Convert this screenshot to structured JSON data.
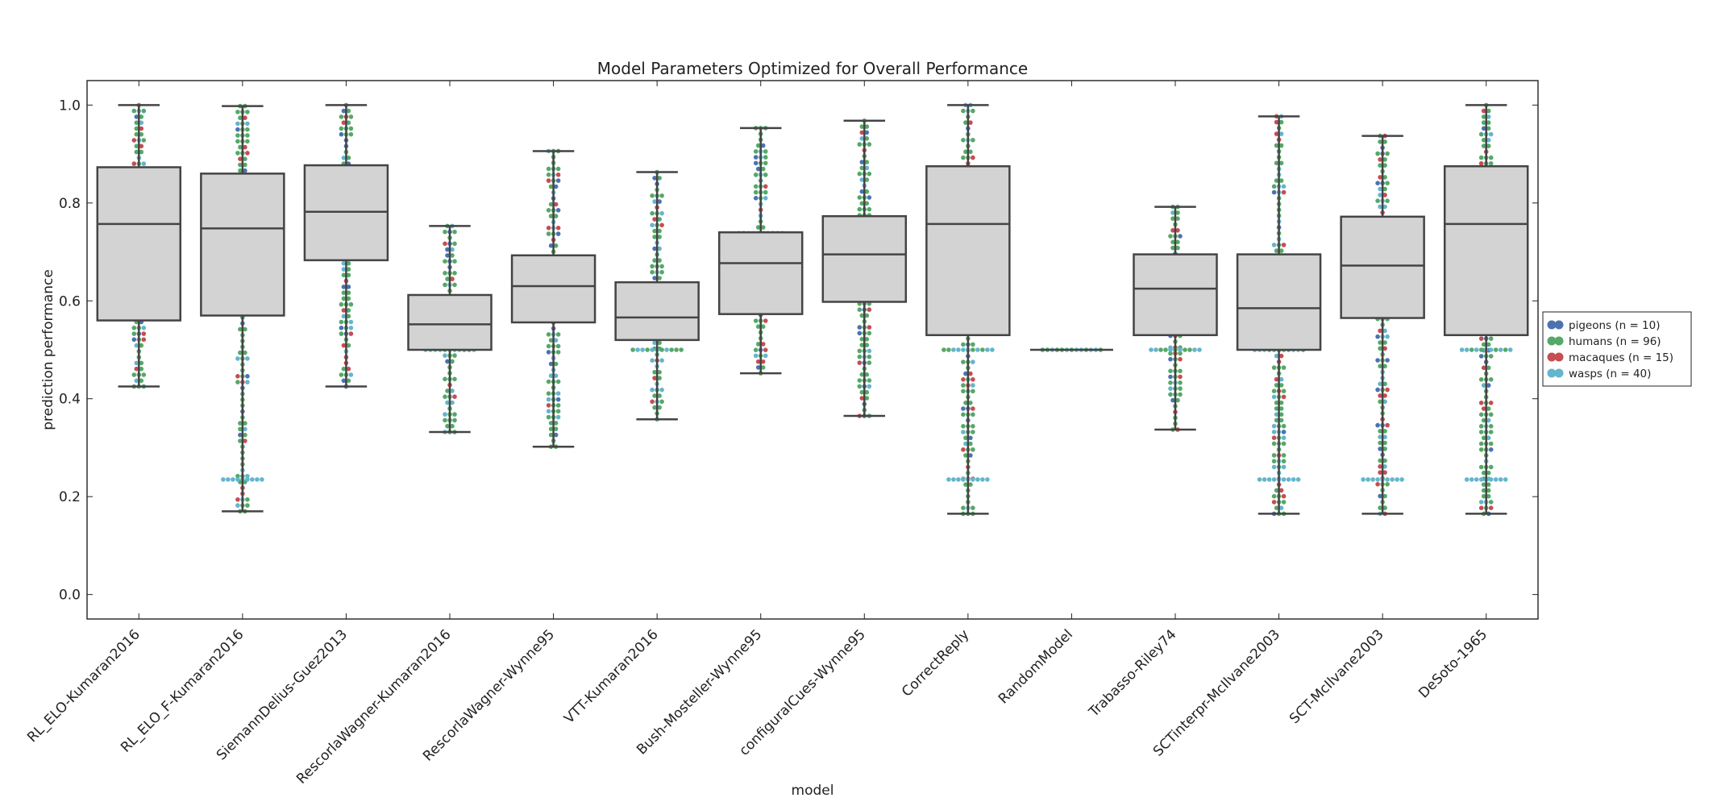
{
  "chart_data": {
    "type": "box",
    "title": "Model Parameters Optimized for Overall Performance",
    "xlabel": "model",
    "ylabel": "prediction performance",
    "ylim": [
      -0.05,
      1.05
    ],
    "yticks": [
      "0.0",
      "0.2",
      "0.4",
      "0.6",
      "0.8",
      "1.0"
    ],
    "grid": false,
    "legend_position": "right",
    "box_fill": "#d3d3d3",
    "box_edge": "#444444",
    "legend": [
      {
        "label": "pigeons (n = 10)",
        "color": "#4c72b0",
        "count": 10
      },
      {
        "label": "humans (n = 96)",
        "color": "#55a868",
        "count": 96
      },
      {
        "label": "macaques (n = 15)",
        "color": "#c44e52",
        "count": 15
      },
      {
        "label": "wasps (n = 40)",
        "color": "#64b5cd",
        "count": 40
      }
    ],
    "categories": [
      "RL_ELO-Kumaran2016",
      "RL_ELO_F-Kumaran2016",
      "SiemannDelius-Guez2013",
      "RescorlaWagner-Kumaran2016",
      "RescorlaWagner-Wynne95",
      "VTT-Kumaran2016",
      "Bush-Mosteller-Wynne95",
      "configuralCues-Wynne95",
      "CorrectReply",
      "RandomModel",
      "Trabasso-Riley74",
      "SCTinterpr-McIlvane2003",
      "SCT-McIlvane2003",
      "DeSoto-1965"
    ],
    "boxes": [
      {
        "whisker_low": 0.425,
        "q1": 0.56,
        "median": 0.757,
        "q3": 0.873,
        "whisker_high": 1.0
      },
      {
        "whisker_low": 0.17,
        "q1": 0.57,
        "median": 0.748,
        "q3": 0.86,
        "whisker_high": 0.998
      },
      {
        "whisker_low": 0.425,
        "q1": 0.683,
        "median": 0.782,
        "q3": 0.877,
        "whisker_high": 1.0
      },
      {
        "whisker_low": 0.332,
        "q1": 0.5,
        "median": 0.552,
        "q3": 0.612,
        "whisker_high": 0.753
      },
      {
        "whisker_low": 0.302,
        "q1": 0.556,
        "median": 0.63,
        "q3": 0.693,
        "whisker_high": 0.906
      },
      {
        "whisker_low": 0.358,
        "q1": 0.52,
        "median": 0.566,
        "q3": 0.638,
        "whisker_high": 0.863
      },
      {
        "whisker_low": 0.452,
        "q1": 0.573,
        "median": 0.677,
        "q3": 0.74,
        "whisker_high": 0.953
      },
      {
        "whisker_low": 0.365,
        "q1": 0.598,
        "median": 0.695,
        "q3": 0.773,
        "whisker_high": 0.968
      },
      {
        "whisker_low": 0.165,
        "q1": 0.53,
        "median": 0.757,
        "q3": 0.875,
        "whisker_high": 1.0
      },
      {
        "whisker_low": 0.5,
        "q1": 0.5,
        "median": 0.5,
        "q3": 0.5,
        "whisker_high": 0.5
      },
      {
        "whisker_low": 0.337,
        "q1": 0.53,
        "median": 0.625,
        "q3": 0.695,
        "whisker_high": 0.792
      },
      {
        "whisker_low": 0.165,
        "q1": 0.5,
        "median": 0.585,
        "q3": 0.695,
        "whisker_high": 0.977
      },
      {
        "whisker_low": 0.165,
        "q1": 0.565,
        "median": 0.672,
        "q3": 0.772,
        "whisker_high": 0.937
      },
      {
        "whisker_low": 0.165,
        "q1": 0.53,
        "median": 0.757,
        "q3": 0.875,
        "whisker_high": 1.0
      }
    ]
  }
}
